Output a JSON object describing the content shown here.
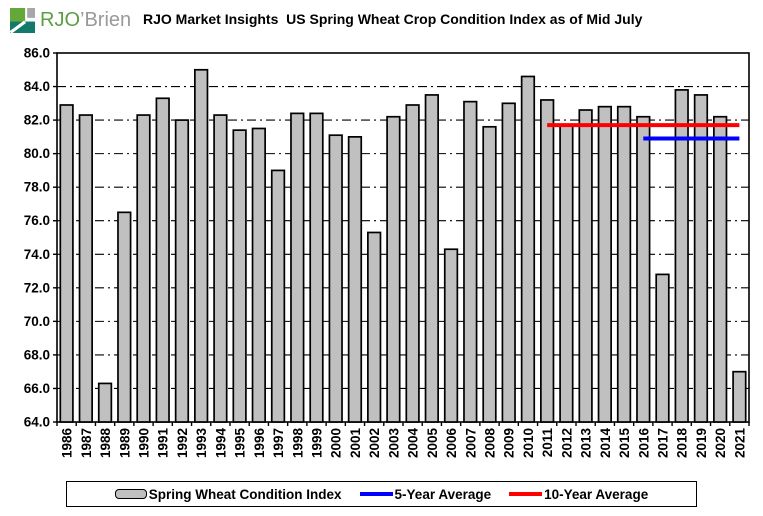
{
  "header": {
    "logo": {
      "primary": "RJO",
      "secondary": "’Brien",
      "colors": {
        "green": "#63A839",
        "teal": "#13796A",
        "gray_block": "#A5A7AA",
        "text_green": "#5AA042",
        "text_gray": "#97999B"
      }
    },
    "title": "RJO Market Insights  US Spring Wheat Crop Condition Index as of Mid July"
  },
  "chart_data": {
    "type": "bar",
    "title": "RJO Market Insights US Spring Wheat Crop Condition Index as of Mid July",
    "categories": [
      "1986",
      "1987",
      "1988",
      "1989",
      "1990",
      "1991",
      "1992",
      "1993",
      "1994",
      "1995",
      "1996",
      "1997",
      "1998",
      "1999",
      "2000",
      "2001",
      "2002",
      "2003",
      "2004",
      "2005",
      "2006",
      "2007",
      "2008",
      "2009",
      "2010",
      "2011",
      "2012",
      "2013",
      "2014",
      "2015",
      "2016",
      "2017",
      "2018",
      "2019",
      "2020",
      "2021"
    ],
    "series": [
      {
        "name": "Spring Wheat Condition Index",
        "type": "bar",
        "color": "#C0C0C0",
        "border_color": "#000000",
        "values": [
          82.9,
          82.3,
          66.3,
          76.5,
          82.3,
          83.3,
          82.0,
          85.0,
          82.3,
          81.4,
          81.5,
          79.0,
          82.4,
          82.4,
          81.1,
          81.0,
          75.3,
          82.2,
          82.9,
          83.5,
          74.3,
          83.1,
          81.6,
          83.0,
          84.6,
          83.2,
          81.7,
          82.6,
          82.8,
          82.8,
          82.2,
          72.8,
          83.8,
          83.5,
          82.2,
          67.0
        ]
      },
      {
        "name": "5-Year Average",
        "type": "line",
        "color": "#0000FF",
        "value": 80.9,
        "from": "2016",
        "to": "2021"
      },
      {
        "name": "10-Year Average",
        "type": "line",
        "color": "#FF0000",
        "value": 81.7,
        "from": "2011",
        "to": "2021"
      }
    ],
    "xlabel": "",
    "ylabel": "",
    "ylim": [
      64.0,
      86.0
    ],
    "ytick_step": 2.0,
    "ytick_labels": [
      "86.0",
      "84.0",
      "82.0",
      "80.0",
      "78.0",
      "76.0",
      "74.0",
      "72.0",
      "70.0",
      "68.0",
      "66.0",
      "64.0"
    ],
    "grid": "horizontal-dashed",
    "grid_color": "#000000",
    "xtick_label_rotation": -90,
    "legend_position": "bottom"
  },
  "legend": {
    "items": [
      {
        "label": "Spring Wheat Condition Index",
        "swatch": "bar",
        "color": "#C0C0C0"
      },
      {
        "label": "5-Year Average",
        "swatch": "line",
        "color": "#0000FF"
      },
      {
        "label": "10-Year Average",
        "swatch": "line",
        "color": "#FF0000"
      }
    ]
  }
}
